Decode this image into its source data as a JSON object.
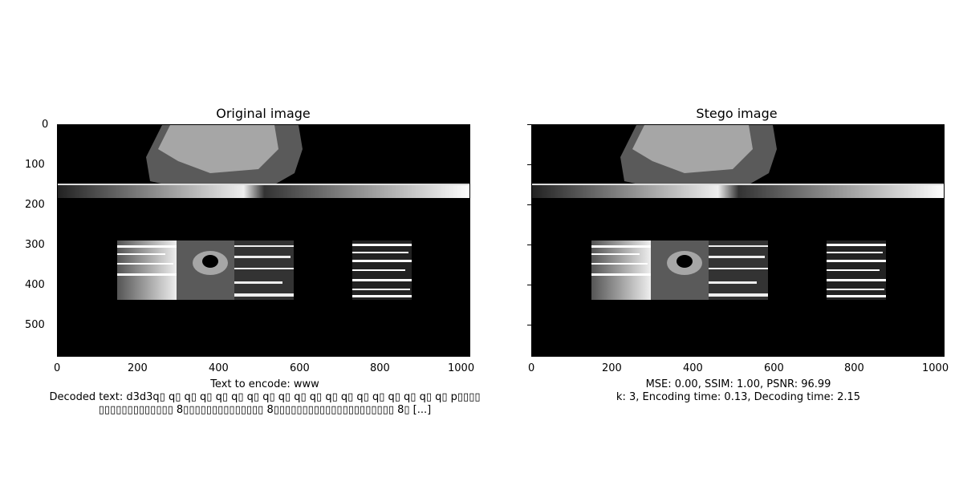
{
  "left_panel": {
    "title": "Original image",
    "caption_line1": "Text to encode: www",
    "caption_line2": "Decoded text: d3d3q▯ q▯ q▯ q▯ q▯ q▯ q▯ q▯ q▯ q▯ q▯ q▯ q▯ q▯ q▯ q▯ q▯ q▯ q▯ p▯▯▯▯",
    "caption_line3": "▯▯▯▯▯▯▯▯▯▯▯▯▯ 8▯▯▯▯▯▯▯▯▯▯▯▯▯▯ 8▯▯▯▯▯▯▯▯▯▯▯▯▯▯▯▯▯▯▯▯▯ 8▯ [...]"
  },
  "right_panel": {
    "title": "Stego image",
    "caption_line1": "MSE: 0.00, SSIM: 1.00, PSNR: 96.99",
    "caption_line2": "k: 3, Encoding time: 0.13, Decoding time: 2.15"
  },
  "axes": {
    "y_ticks": [
      "0",
      "100",
      "200",
      "300",
      "400",
      "500"
    ],
    "x_ticks": [
      "0",
      "200",
      "400",
      "600",
      "800",
      "1000"
    ]
  },
  "colors": {
    "background": "#000000",
    "gray_dark": "#5a5a5a",
    "gray_light": "#a6a6a6"
  }
}
